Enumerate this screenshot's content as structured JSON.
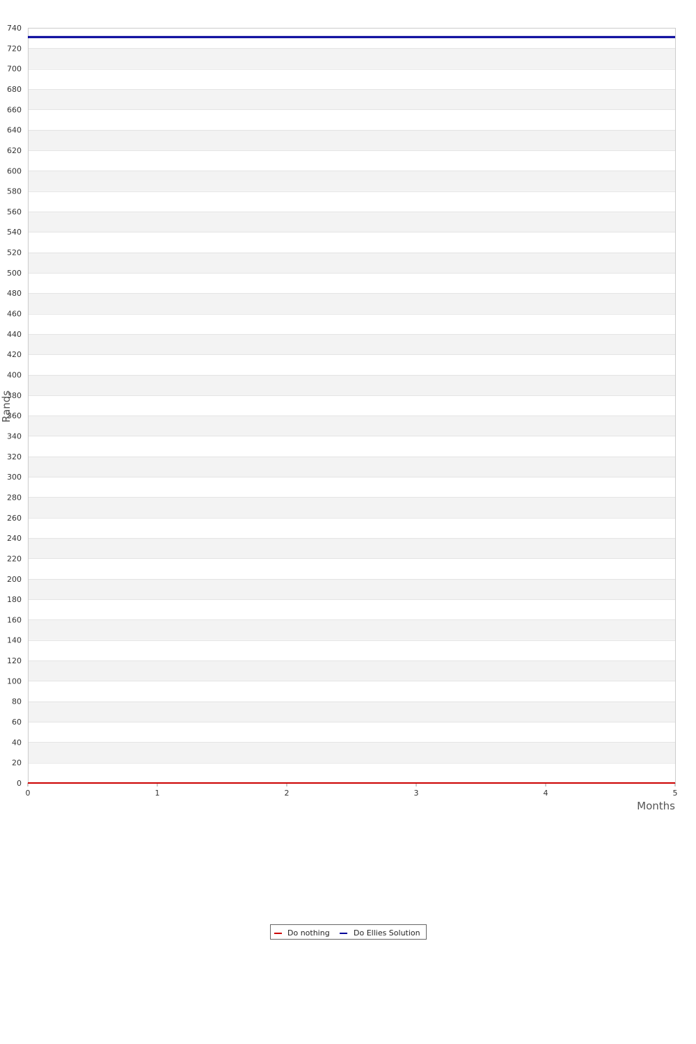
{
  "chart_data": {
    "type": "line",
    "title": "",
    "xlabel": "Months",
    "ylabel": "Rands",
    "xlim": [
      0,
      5
    ],
    "ylim": [
      0,
      740
    ],
    "x_ticks": [
      0,
      1,
      2,
      3,
      4,
      5
    ],
    "y_tick_step": 20,
    "grid": true,
    "legend_position": "bottom-center",
    "x": [
      0,
      1,
      2,
      3,
      4,
      5
    ],
    "series": [
      {
        "name": "Do nothing",
        "color": "#cc0000",
        "values": [
          0,
          0,
          0,
          0,
          0,
          0
        ]
      },
      {
        "name": "Do Ellies Solution",
        "color": "#000099",
        "values": [
          731,
          731,
          731,
          731,
          731,
          731
        ]
      }
    ]
  }
}
